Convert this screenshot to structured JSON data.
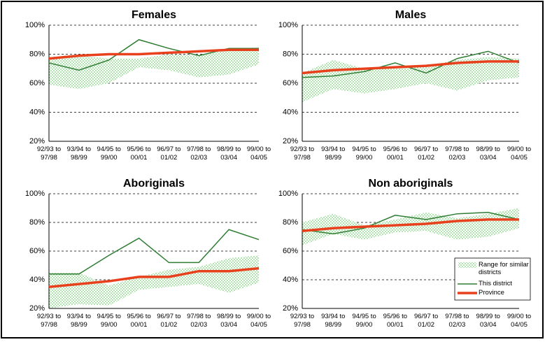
{
  "chart_data": [
    {
      "type": "line",
      "title": "Females",
      "categories": [
        "92/93 to 97/98",
        "93/94 to 98/99",
        "94/95 to 99/00",
        "95/96 to 00/01",
        "96/97 to 01/02",
        "97/98 to 02/03",
        "98/99 to 03/04",
        "99/00 to 04/05"
      ],
      "range": {
        "low": [
          59,
          56,
          60,
          71,
          69,
          64,
          66,
          73
        ],
        "high": [
          78,
          79,
          77,
          77,
          80,
          79,
          83,
          85
        ]
      },
      "district": [
        74,
        69,
        76,
        90,
        84,
        79,
        84,
        84
      ],
      "province": [
        77,
        79,
        80,
        80,
        81,
        82,
        83,
        83
      ],
      "ylim": [
        20,
        100
      ],
      "yticks": [
        {
          "value": 20,
          "label": "20%"
        },
        {
          "value": 40,
          "label": "40%"
        },
        {
          "value": 60,
          "label": "60%"
        },
        {
          "value": 80,
          "label": "80%"
        },
        {
          "value": 100,
          "label": "100%"
        }
      ]
    },
    {
      "type": "line",
      "title": "Males",
      "categories": [
        "92/93 to 97/98",
        "93/94 to 98/99",
        "94/95 to 99/00",
        "95/96 to 00/01",
        "96/97 to 01/02",
        "97/98 to 02/03",
        "98/99 to 03/04",
        "99/00 to 04/05"
      ],
      "range": {
        "low": [
          47,
          56,
          53,
          56,
          60,
          55,
          62,
          64
        ],
        "high": [
          67,
          76,
          70,
          70,
          72,
          76,
          78,
          77
        ]
      },
      "district": [
        64,
        65,
        68,
        74,
        67,
        77,
        82,
        74
      ],
      "province": [
        67,
        69,
        70,
        71,
        72,
        74,
        75,
        75
      ],
      "ylim": [
        20,
        100
      ],
      "yticks": [
        {
          "value": 20,
          "label": "20%"
        },
        {
          "value": 40,
          "label": "40%"
        },
        {
          "value": 60,
          "label": "60%"
        },
        {
          "value": 80,
          "label": "80%"
        },
        {
          "value": 100,
          "label": "100%"
        }
      ]
    },
    {
      "type": "line",
      "title": "Aboriginals",
      "categories": [
        "92/93 to 97/98",
        "93/94 to 98/99",
        "94/95 to 99/00",
        "95/96 to 00/01",
        "96/97 to 01/02",
        "97/98 to 02/03",
        "98/99 to 03/04",
        "99/00 to 04/05"
      ],
      "range": {
        "low": [
          20,
          23,
          22,
          33,
          35,
          37,
          31,
          38
        ],
        "high": [
          45,
          45,
          36,
          42,
          47,
          49,
          55,
          57
        ]
      },
      "district": [
        44,
        44,
        57,
        69,
        52,
        52,
        75,
        68
      ],
      "province": [
        35,
        37,
        39,
        42,
        42,
        46,
        46,
        48
      ],
      "ylim": [
        20,
        100
      ],
      "yticks": [
        {
          "value": 20,
          "label": "20%"
        },
        {
          "value": 40,
          "label": "40%"
        },
        {
          "value": 60,
          "label": "60%"
        },
        {
          "value": 80,
          "label": "80%"
        },
        {
          "value": 100,
          "label": "100%"
        }
      ]
    },
    {
      "type": "line",
      "title": "Non aboriginals",
      "categories": [
        "92/93 to 97/98",
        "93/94 to 98/99",
        "94/95 to 99/00",
        "95/96 to 00/01",
        "96/97 to 01/02",
        "97/98 to 02/03",
        "98/99 to 03/04",
        "99/00 to 04/05"
      ],
      "range": {
        "low": [
          64,
          72,
          68,
          73,
          74,
          68,
          70,
          76
        ],
        "high": [
          80,
          86,
          78,
          82,
          87,
          83,
          86,
          90
        ]
      },
      "district": [
        75,
        72,
        76,
        85,
        82,
        86,
        87,
        82
      ],
      "province": [
        74,
        76,
        77,
        78,
        79,
        81,
        82,
        82
      ],
      "ylim": [
        20,
        100
      ],
      "yticks": [
        {
          "value": 20,
          "label": "20%"
        },
        {
          "value": 40,
          "label": "40%"
        },
        {
          "value": 60,
          "label": "60%"
        },
        {
          "value": 80,
          "label": "80%"
        },
        {
          "value": 100,
          "label": "100%"
        }
      ],
      "legend": [
        {
          "name": "Range for similar districts",
          "color": "#7fcf7f"
        },
        {
          "name": "This district",
          "color": "#2e7d32"
        },
        {
          "name": "Province",
          "color": "#e8401c"
        }
      ]
    }
  ]
}
